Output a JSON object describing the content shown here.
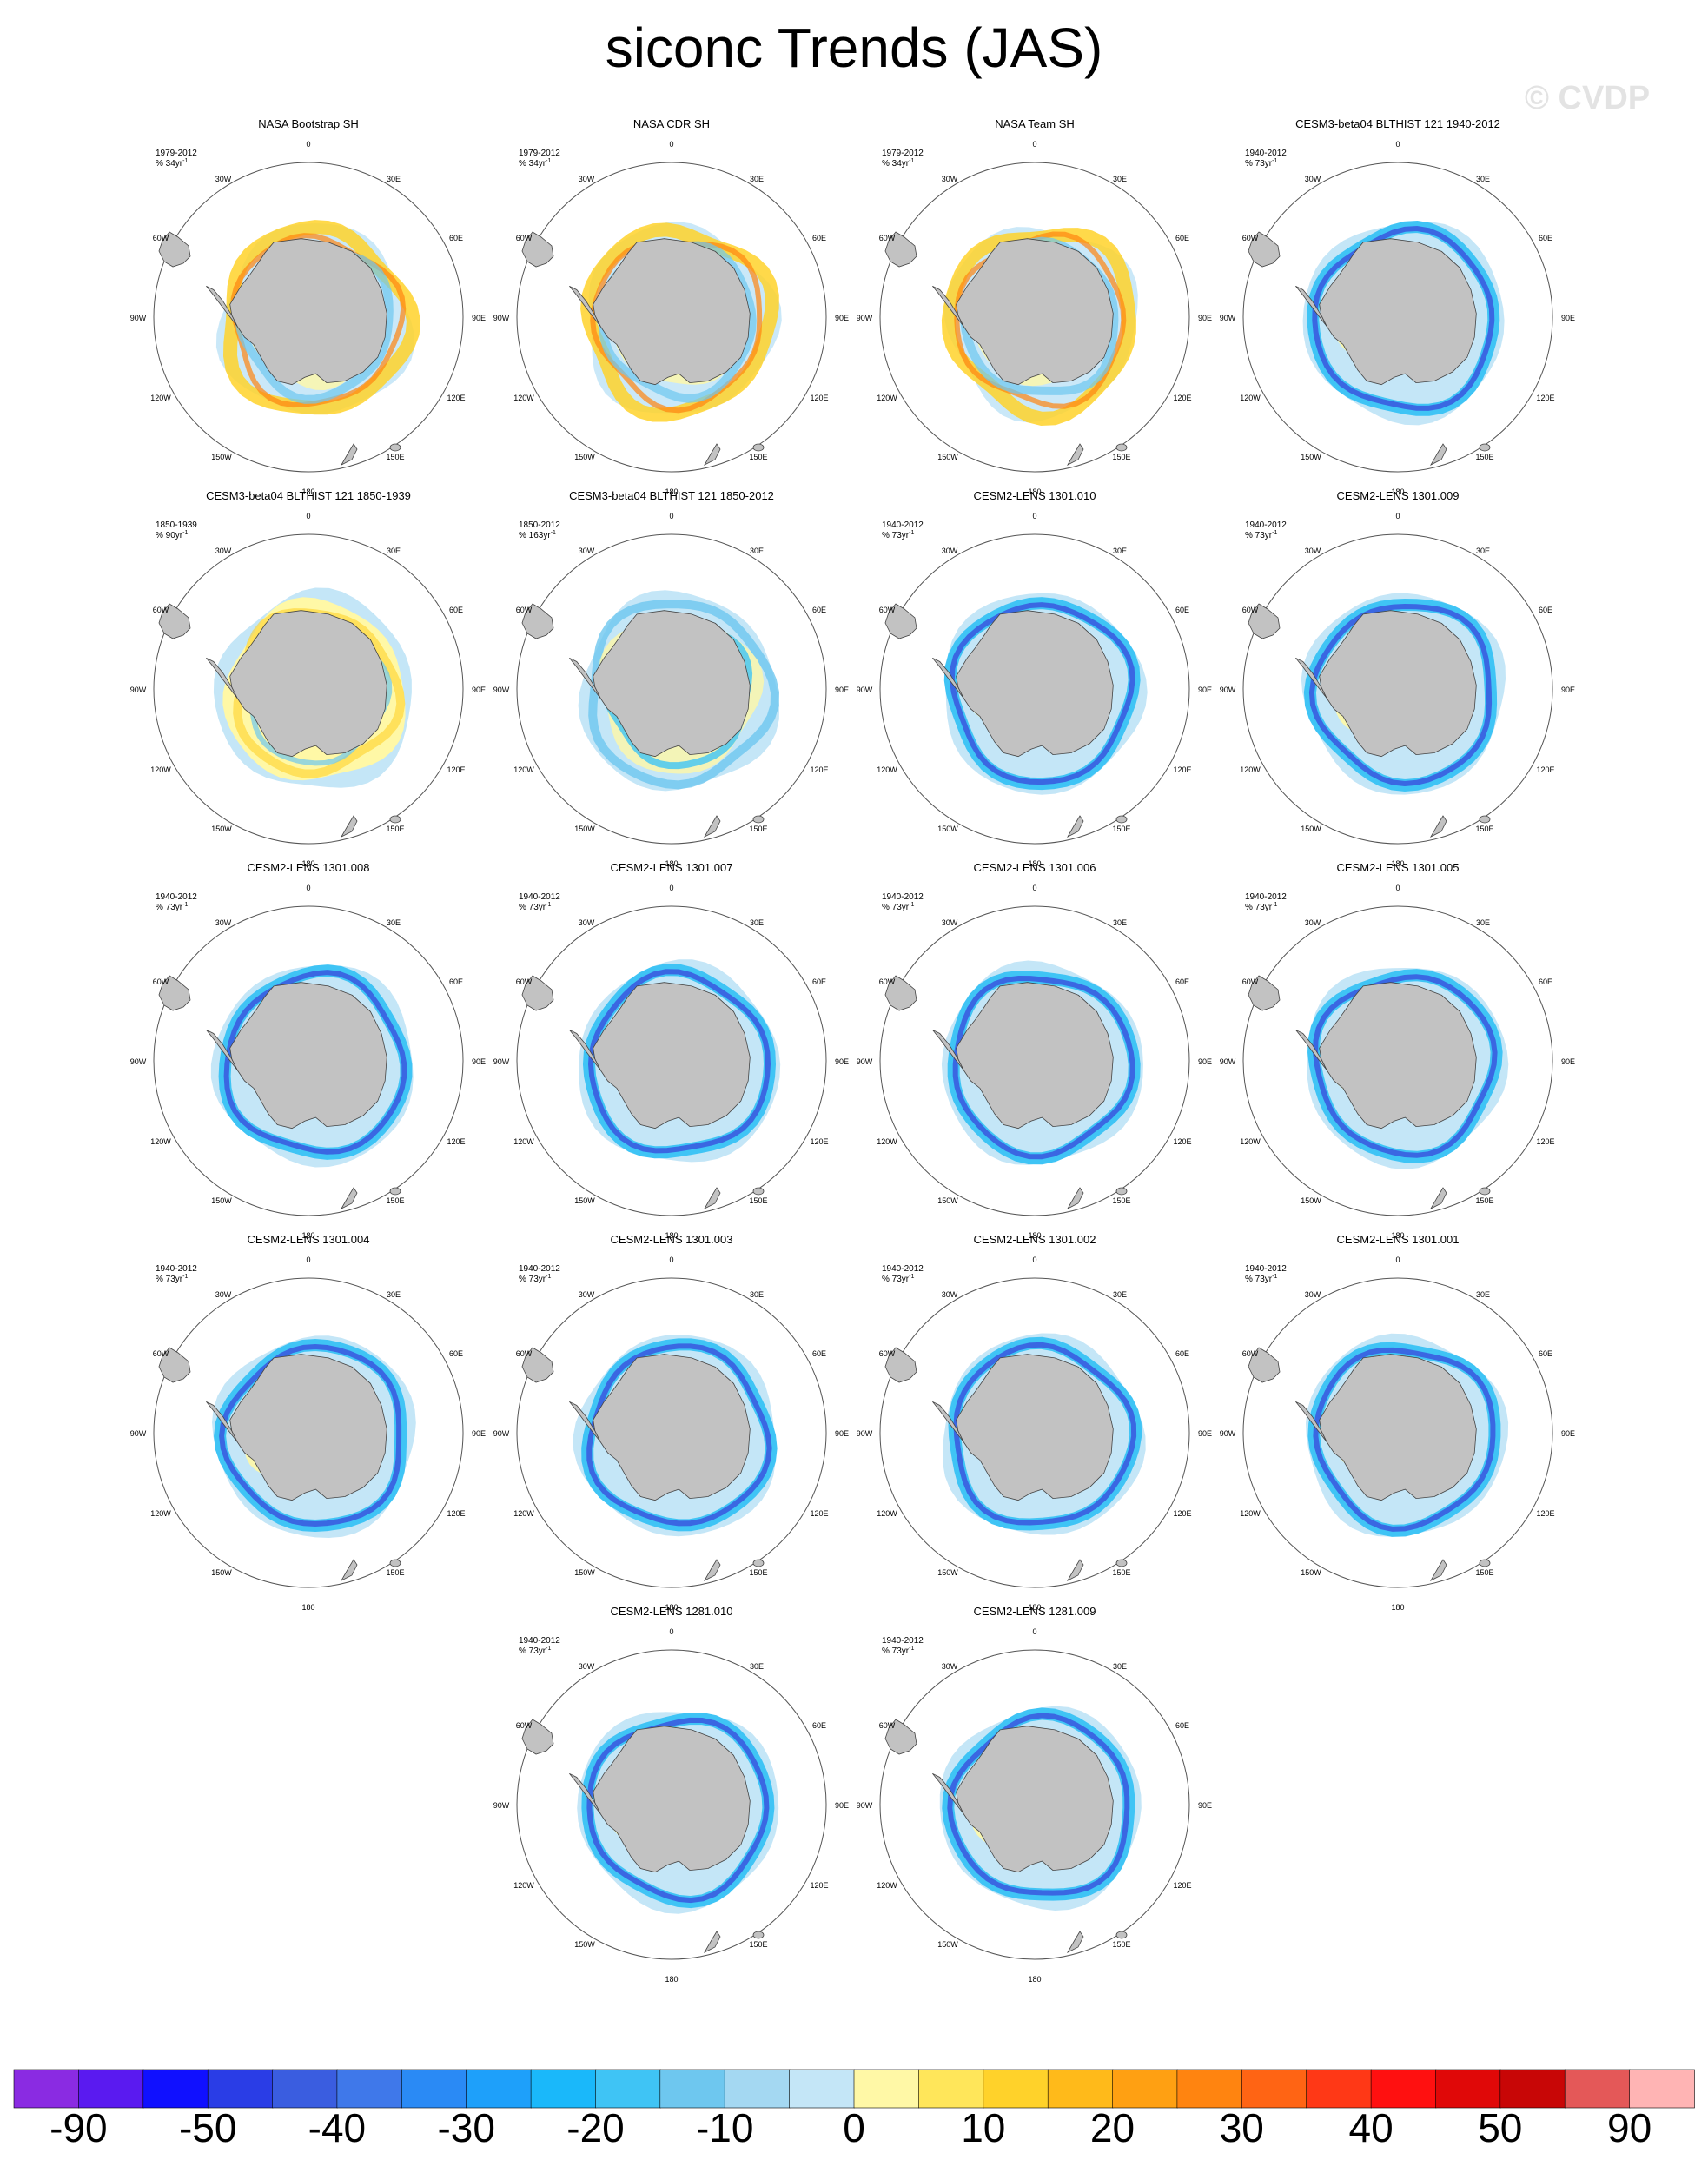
{
  "title": "siconc Trends (JAS)",
  "watermark": "© CVDP",
  "colors": {
    "land": "#c2c2c2",
    "coast": "#444444",
    "circle": "#555555"
  },
  "labels": {
    "lon": [
      "0",
      "30E",
      "60E",
      "90E",
      "120E",
      "150E",
      "180",
      "150W",
      "120W",
      "90W",
      "60W",
      "30W"
    ]
  },
  "panels": [
    {
      "name": "NASA Bootstrap SH",
      "period": "1979-2012",
      "units": "% 34yr",
      "exp": "-1",
      "pattern": "obs"
    },
    {
      "name": "NASA CDR SH",
      "period": "1979-2012",
      "units": "% 34yr",
      "exp": "-1",
      "pattern": "obs"
    },
    {
      "name": "NASA Team SH",
      "period": "1979-2012",
      "units": "% 34yr",
      "exp": "-1",
      "pattern": "obs"
    },
    {
      "name": "CESM3-beta04 BLTHIST 121 1940-2012",
      "period": "1940-2012",
      "units": "% 73yr",
      "exp": "-1",
      "pattern": "model"
    },
    {
      "name": "CESM3-beta04 BLTHIST 121 1850-1939",
      "period": "1850-1939",
      "units": "% 90yr",
      "exp": "-1",
      "pattern": "early"
    },
    {
      "name": "CESM3-beta04 BLTHIST 121 1850-2012",
      "period": "1850-2012",
      "units": "% 163yr",
      "exp": "-1",
      "pattern": "mixed"
    },
    {
      "name": "CESM2-LENS 1301.010",
      "period": "1940-2012",
      "units": "% 73yr",
      "exp": "-1",
      "pattern": "model"
    },
    {
      "name": "CESM2-LENS 1301.009",
      "period": "1940-2012",
      "units": "% 73yr",
      "exp": "-1",
      "pattern": "model"
    },
    {
      "name": "CESM2-LENS 1301.008",
      "period": "1940-2012",
      "units": "% 73yr",
      "exp": "-1",
      "pattern": "model"
    },
    {
      "name": "CESM2-LENS 1301.007",
      "period": "1940-2012",
      "units": "% 73yr",
      "exp": "-1",
      "pattern": "model"
    },
    {
      "name": "CESM2-LENS 1301.006",
      "period": "1940-2012",
      "units": "% 73yr",
      "exp": "-1",
      "pattern": "model"
    },
    {
      "name": "CESM2-LENS 1301.005",
      "period": "1940-2012",
      "units": "% 73yr",
      "exp": "-1",
      "pattern": "model"
    },
    {
      "name": "CESM2-LENS 1301.004",
      "period": "1940-2012",
      "units": "% 73yr",
      "exp": "-1",
      "pattern": "model"
    },
    {
      "name": "CESM2-LENS 1301.003",
      "period": "1940-2012",
      "units": "% 73yr",
      "exp": "-1",
      "pattern": "model"
    },
    {
      "name": "CESM2-LENS 1301.002",
      "period": "1940-2012",
      "units": "% 73yr",
      "exp": "-1",
      "pattern": "model"
    },
    {
      "name": "CESM2-LENS 1301.001",
      "period": "1940-2012",
      "units": "% 73yr",
      "exp": "-1",
      "pattern": "model"
    },
    {
      "name": "CESM2-LENS 1281.010",
      "period": "1940-2012",
      "units": "% 73yr",
      "exp": "-1",
      "pattern": "model"
    },
    {
      "name": "CESM2-LENS 1281.009",
      "period": "1940-2012",
      "units": "% 73yr",
      "exp": "-1",
      "pattern": "model"
    }
  ],
  "colorbar": {
    "colors": [
      "#8a2be2",
      "#5a1af0",
      "#1010ff",
      "#2a3de6",
      "#3a5de0",
      "#3f78ea",
      "#2a8af5",
      "#1ea0fa",
      "#1ab8fa",
      "#3fc4f5",
      "#6ec7ef",
      "#a4d8f2",
      "#c4e6f7",
      "#fff8a6",
      "#ffe65a",
      "#ffd22a",
      "#ffba1a",
      "#ffa012",
      "#ff8410",
      "#ff6414",
      "#ff3816",
      "#ff1010",
      "#e00808",
      "#c80606",
      "#e45858",
      "#ffb4b4"
    ],
    "ticks": [
      "-90",
      "-50",
      "-40",
      "-30",
      "-20",
      "-10",
      "0",
      "10",
      "20",
      "30",
      "40",
      "50",
      "90"
    ]
  }
}
